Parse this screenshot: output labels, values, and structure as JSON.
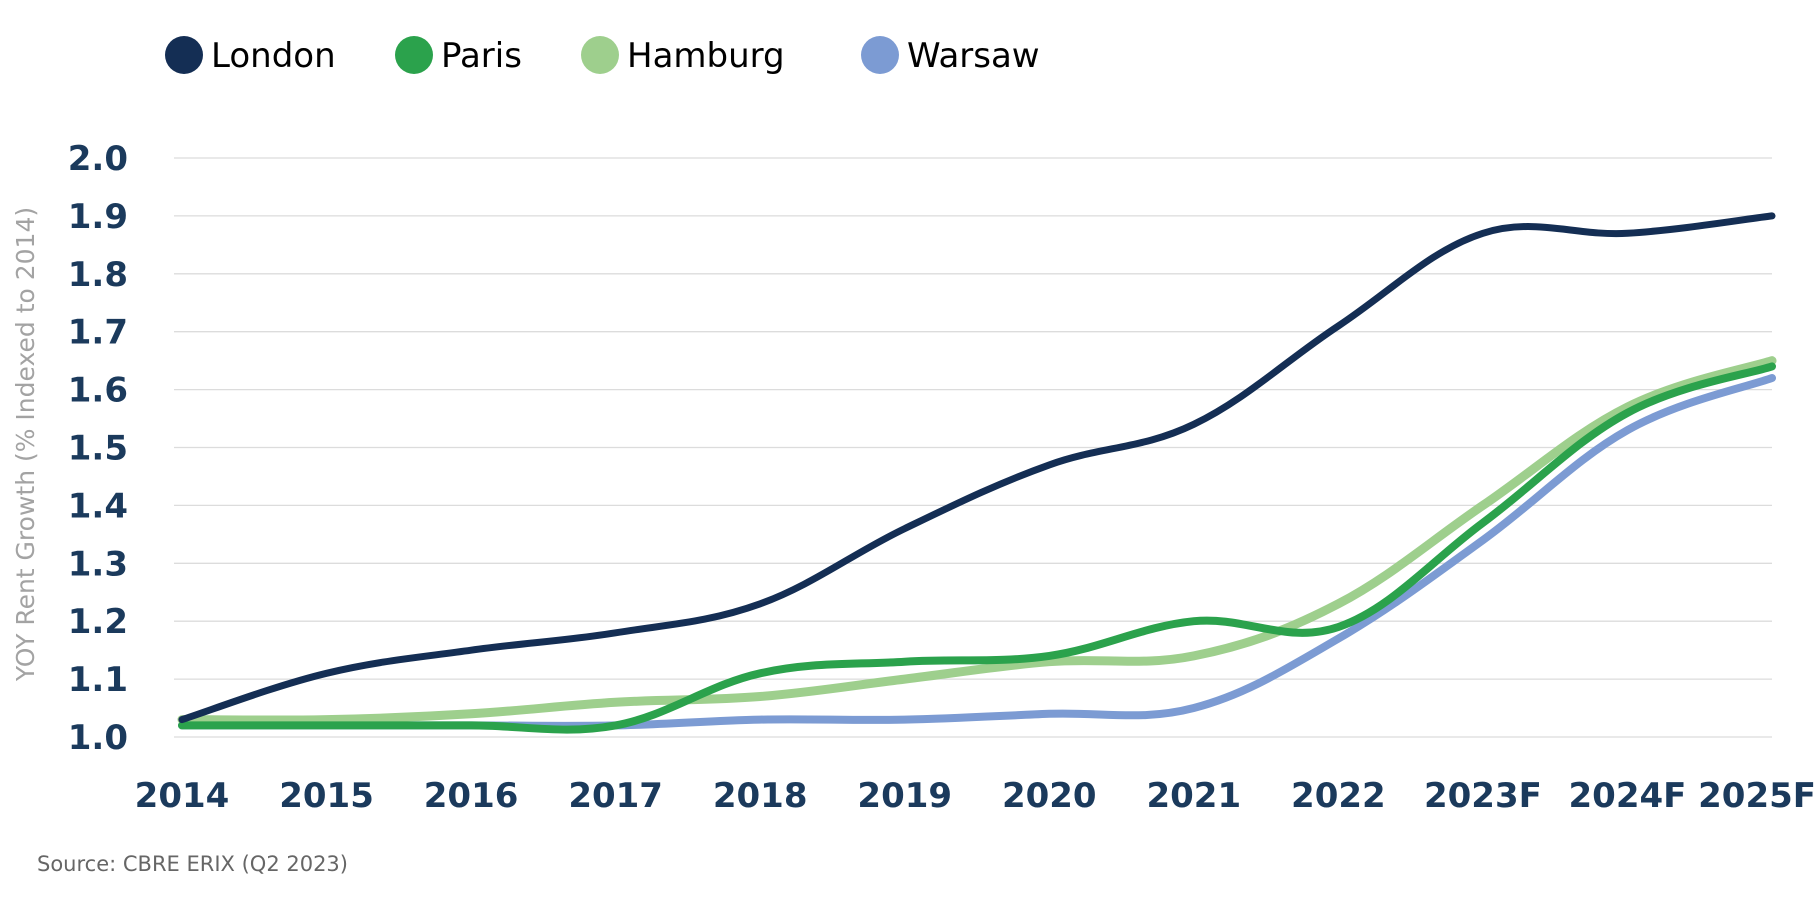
{
  "chart_data": {
    "type": "line",
    "title": "",
    "xlabel": "",
    "ylabel": "YOY Rent Growth (% Indexed to 2014)",
    "ylim": [
      1.0,
      2.0
    ],
    "yticks": [
      "1.0",
      "1.1",
      "1.2",
      "1.3",
      "1.4",
      "1.5",
      "1.6",
      "1.7",
      "1.8",
      "1.9",
      "2.0"
    ],
    "categories": [
      "2014",
      "2015",
      "2016",
      "2017",
      "2018",
      "2019",
      "2020",
      "2021",
      "2022",
      "2023F",
      "2024F",
      "2025F"
    ],
    "grid": true,
    "legend_position": "top-left",
    "source": "Source: CBRE ERIX (Q2 2023)",
    "series": [
      {
        "name": "London",
        "color": "#142e54",
        "values": [
          1.03,
          1.11,
          1.15,
          1.18,
          1.23,
          1.36,
          1.47,
          1.54,
          1.71,
          1.87,
          1.87,
          1.9
        ]
      },
      {
        "name": "Paris",
        "color": "#2ba24c",
        "values": [
          1.02,
          1.02,
          1.02,
          1.02,
          1.11,
          1.13,
          1.14,
          1.2,
          1.19,
          1.37,
          1.56,
          1.64
        ]
      },
      {
        "name": "Hamburg",
        "color": "#9ecf8d",
        "values": [
          1.03,
          1.03,
          1.04,
          1.06,
          1.07,
          1.1,
          1.13,
          1.14,
          1.23,
          1.4,
          1.57,
          1.65
        ]
      },
      {
        "name": "Warsaw",
        "color": "#7c9bd3",
        "values": [
          1.02,
          1.02,
          1.02,
          1.02,
          1.03,
          1.03,
          1.04,
          1.05,
          1.17,
          1.34,
          1.53,
          1.62
        ]
      }
    ]
  }
}
